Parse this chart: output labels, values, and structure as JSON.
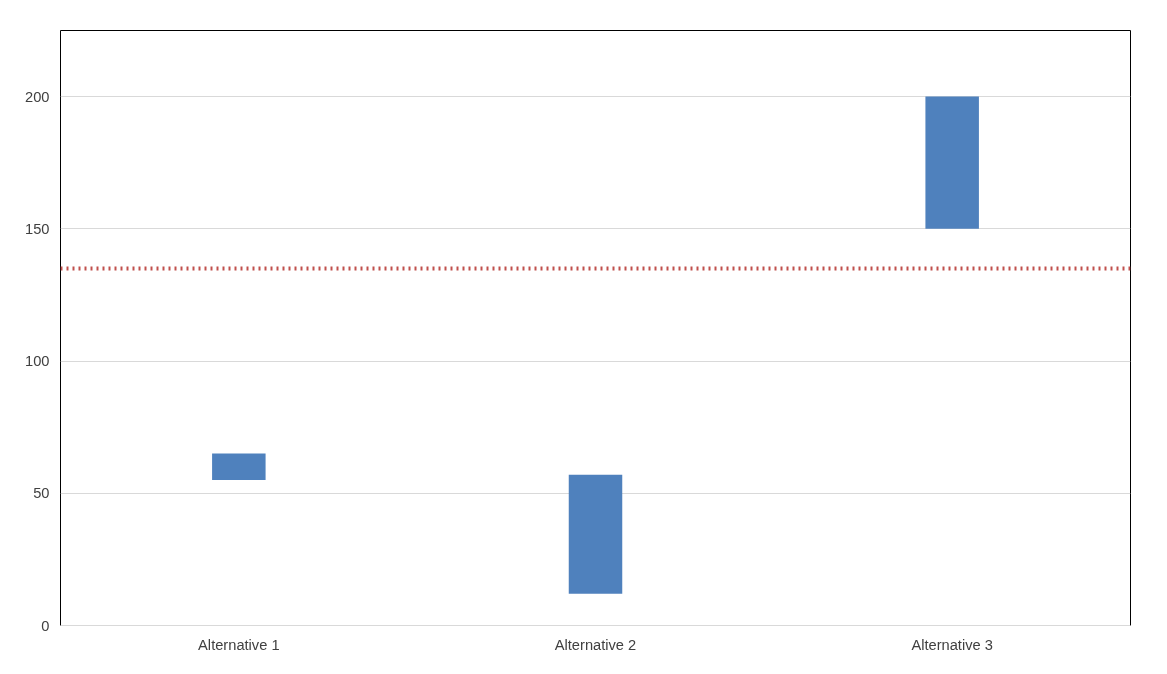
{
  "chart_data": {
    "type": "bar",
    "categories": [
      "Alternative 1",
      "Alternative 2",
      "Alternative 3"
    ],
    "base": [
      55,
      12,
      150
    ],
    "values": [
      10,
      45,
      50
    ],
    "color": "#4f81bd",
    "ylim": [
      0,
      225
    ],
    "yticks": [
      0,
      50,
      100,
      150,
      200
    ],
    "grid": "y",
    "ref_lines": [
      {
        "axis": "y",
        "value": 135,
        "label": null,
        "color": "#c0504d",
        "line_style": "dotted"
      }
    ]
  }
}
